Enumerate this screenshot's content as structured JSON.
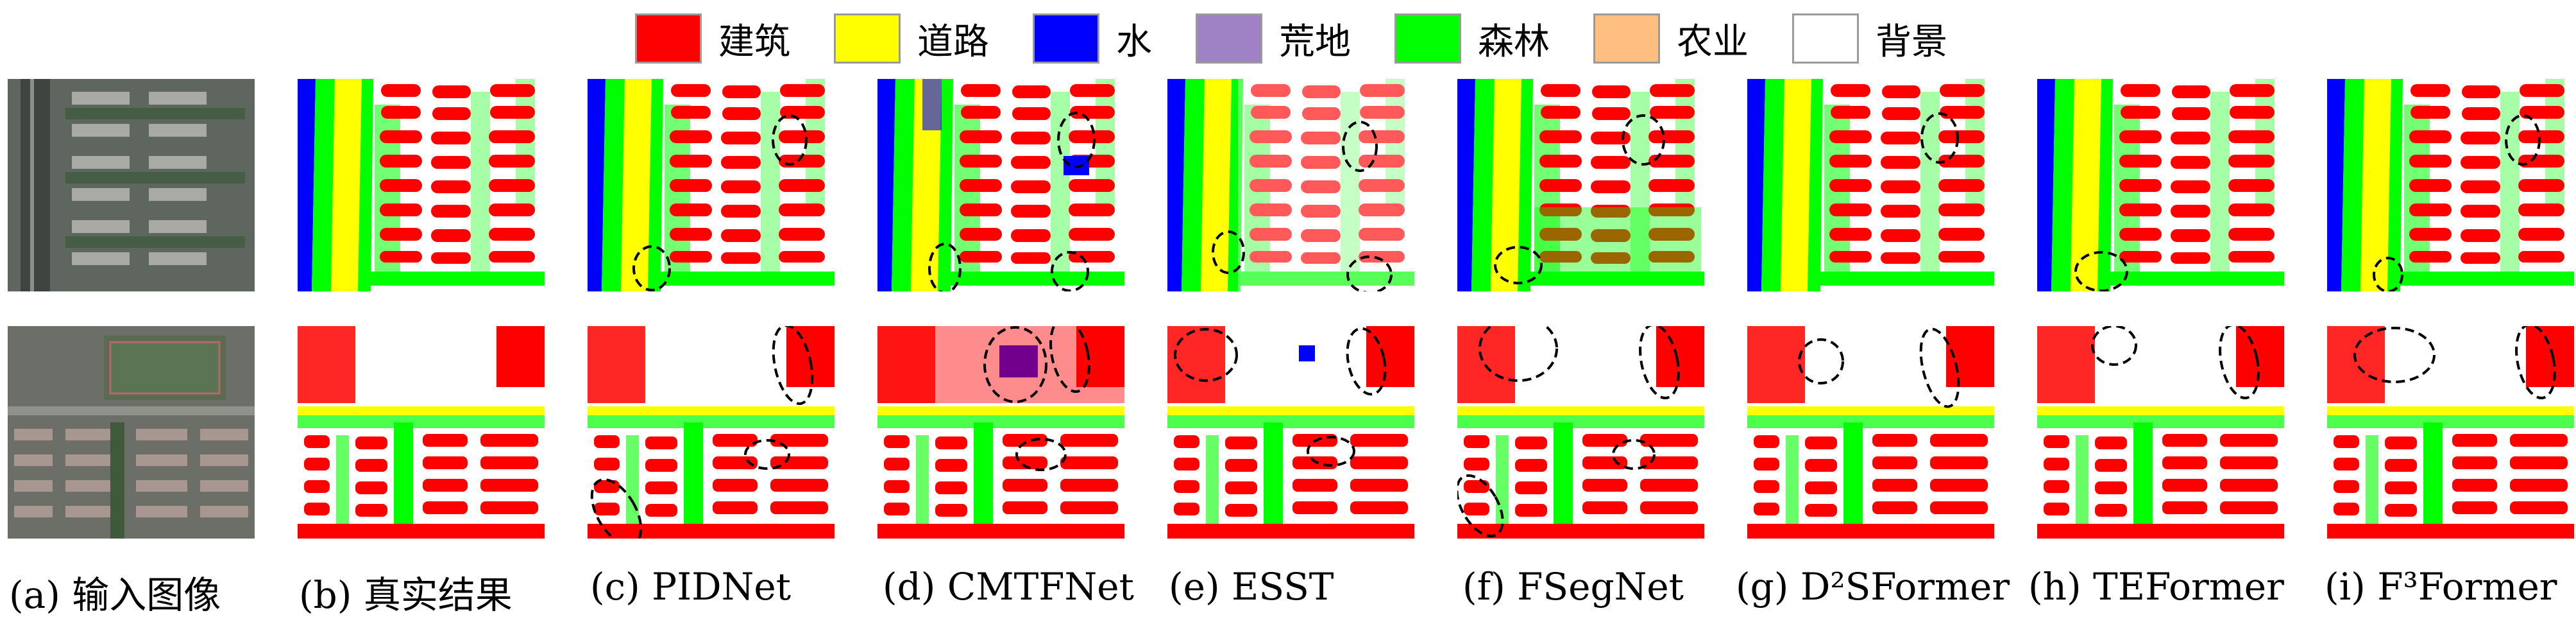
{
  "legend": [
    {
      "label": "建筑",
      "color": "#ff0000"
    },
    {
      "label": "道路",
      "color": "#ffff00"
    },
    {
      "label": "水",
      "color": "#0000ff"
    },
    {
      "label": "荒地",
      "color": "#9f81c5"
    },
    {
      "label": "森林",
      "color": "#00ff00"
    },
    {
      "label": "农业",
      "color": "#ffbf80"
    },
    {
      "label": "背景",
      "color": "#ffffff"
    }
  ],
  "captions": [
    "(a) 输入图像",
    "(b) 真实结果",
    "(c) PIDNet",
    "(d) CMTFNet",
    "(e) ESST",
    "(f) FSegNet",
    "(g) D²SFormer",
    "(h) TEFormer",
    "(i) F³Former"
  ]
}
